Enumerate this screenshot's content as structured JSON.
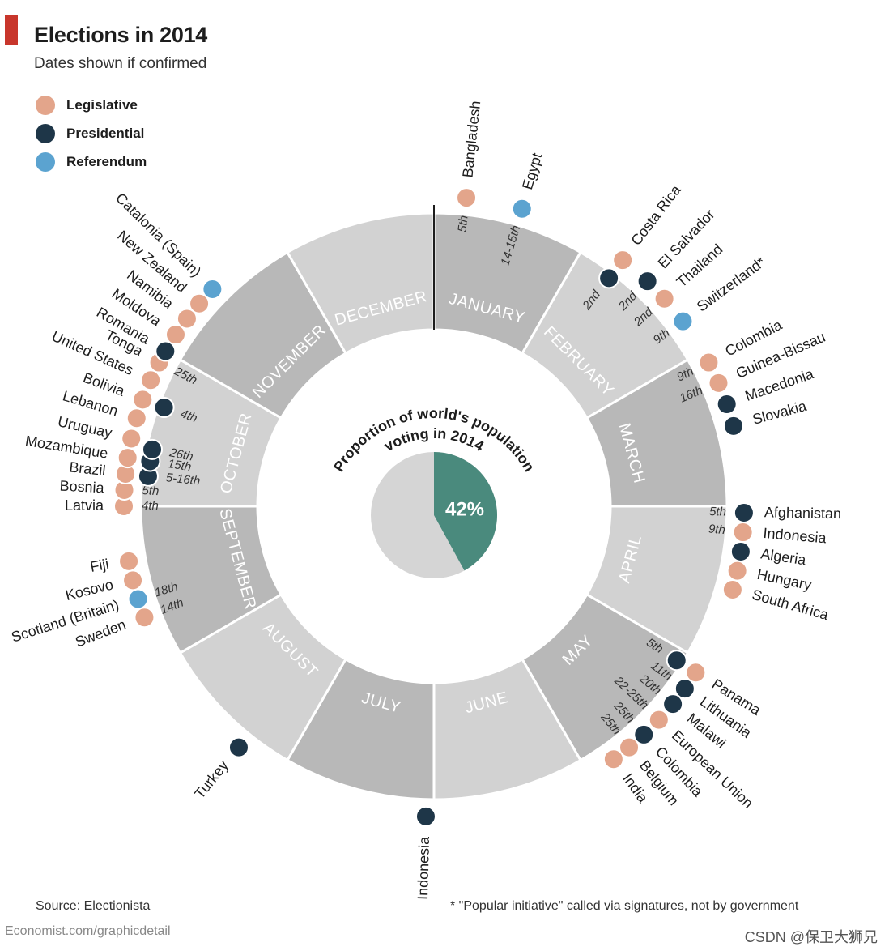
{
  "header": {
    "title": "Elections in 2014",
    "subtitle": "Dates shown if confirmed"
  },
  "legend": [
    {
      "label": "Legislative",
      "color": "#e3a58b",
      "key": "legislative"
    },
    {
      "label": "Presidential",
      "color": "#1e3648",
      "key": "presidential"
    },
    {
      "label": "Referendum",
      "color": "#5ba3d0",
      "key": "referendum"
    }
  ],
  "footer": {
    "source": "Source: Electionista",
    "credit": "Economist.com/graphicdetail",
    "footnote": "* \"Popular initiative\" called via signatures, not by government",
    "watermark": "CSDN @保卫大狮兄"
  },
  "colors": {
    "light_segment": "#d2d2d2",
    "dark_segment": "#b8b8b8",
    "pie_rest": "#d5d5d5",
    "pie_share": "#4a8a7d"
  },
  "chart_data": {
    "type": "radial-timeline",
    "months": [
      "JANUARY",
      "FEBRUARY",
      "MARCH",
      "APRIL",
      "MAY",
      "JUNE",
      "JULY",
      "AUGUST",
      "SEPTEMBER",
      "OCTOBER",
      "NOVEMBER",
      "DECEMBER"
    ],
    "center": {
      "title_line1": "Proportion of world's population",
      "title_line2": "voting in 2014",
      "share": 0.42,
      "share_label": "42%"
    },
    "elections": [
      {
        "month": 0,
        "pos": 0.2,
        "country": "Bangladesh",
        "type": "legislative",
        "date": "5th"
      },
      {
        "month": 0,
        "pos": 0.55,
        "country": "Egypt",
        "type": "referendum",
        "date": "14-15th"
      },
      {
        "month": 1,
        "pos": 0.25,
        "country": "Costa Rica",
        "type": "legislative",
        "date": ""
      },
      {
        "month": 1,
        "pos": 0.25,
        "country": "",
        "type": "presidential",
        "date": "2nd",
        "ring": 1
      },
      {
        "month": 1,
        "pos": 0.45,
        "country": "El Salvador",
        "type": "presidential",
        "date": "2nd"
      },
      {
        "month": 1,
        "pos": 0.6,
        "country": "Thailand",
        "type": "legislative",
        "date": "2nd"
      },
      {
        "month": 1,
        "pos": 0.78,
        "country": "Switzerland*",
        "type": "referendum",
        "date": "9th"
      },
      {
        "month": 2,
        "pos": 0.08,
        "country": "Colombia",
        "type": "legislative",
        "date": "9th"
      },
      {
        "month": 2,
        "pos": 0.22,
        "country": "Guinea-Bissau",
        "type": "legislative",
        "date": "16th"
      },
      {
        "month": 2,
        "pos": 0.36,
        "country": "Macedonia",
        "type": "presidential",
        "date": ""
      },
      {
        "month": 2,
        "pos": 0.5,
        "country": "Slovakia",
        "type": "presidential",
        "date": ""
      },
      {
        "month": 3,
        "pos": 0.04,
        "country": "Afghanistan",
        "type": "presidential",
        "date": "5th"
      },
      {
        "month": 3,
        "pos": 0.16,
        "country": "Indonesia",
        "type": "legislative",
        "date": "9th"
      },
      {
        "month": 3,
        "pos": 0.28,
        "country": "Algeria",
        "type": "presidential",
        "date": ""
      },
      {
        "month": 3,
        "pos": 0.4,
        "country": "Hungary",
        "type": "legislative",
        "date": ""
      },
      {
        "month": 3,
        "pos": 0.52,
        "country": "South Africa",
        "type": "legislative",
        "date": ""
      },
      {
        "month": 4,
        "pos": 0.08,
        "country": "Panama",
        "type": "legislative",
        "date": ""
      },
      {
        "month": 4,
        "pos": 0.08,
        "country": "",
        "type": "presidential",
        "date": "5th",
        "ring": 1
      },
      {
        "month": 4,
        "pos": 0.2,
        "country": "Lithuania",
        "type": "presidential",
        "date": "11th"
      },
      {
        "month": 4,
        "pos": 0.32,
        "country": "Malawi",
        "type": "presidential",
        "date": "20th"
      },
      {
        "month": 4,
        "pos": 0.45,
        "country": "European Union",
        "type": "legislative",
        "date": "22-25th"
      },
      {
        "month": 4,
        "pos": 0.58,
        "country": "Colombia",
        "type": "presidential",
        "date": "25th"
      },
      {
        "month": 4,
        "pos": 0.7,
        "country": "Belgium",
        "type": "legislative",
        "date": "25th"
      },
      {
        "month": 4,
        "pos": 0.82,
        "country": "India",
        "type": "legislative",
        "date": ""
      },
      {
        "month": 6,
        "pos": 0.05,
        "country": "Indonesia",
        "type": "presidential",
        "date": ""
      },
      {
        "month": 7,
        "pos": 0.3,
        "country": "Turkey",
        "type": "presidential",
        "date": ""
      },
      {
        "month": 8,
        "pos": 0.3,
        "country": "Sweden",
        "type": "legislative",
        "date": "14th"
      },
      {
        "month": 8,
        "pos": 0.42,
        "country": "Scotland (Britain)",
        "type": "referendum",
        "date": "18th"
      },
      {
        "month": 8,
        "pos": 0.54,
        "country": "Kosovo",
        "type": "legislative",
        "date": ""
      },
      {
        "month": 8,
        "pos": 0.66,
        "country": "Fiji",
        "type": "legislative",
        "date": ""
      },
      {
        "month": 9,
        "pos": 0.0,
        "country": "Latvia",
        "type": "legislative",
        "date": "4th"
      },
      {
        "month": 9,
        "pos": 0.1,
        "country": "Bosnia",
        "type": "legislative",
        "date": "5th"
      },
      {
        "month": 9,
        "pos": 0.2,
        "country": "Brazil",
        "type": "legislative",
        "date": ""
      },
      {
        "month": 9,
        "pos": 0.2,
        "country": "",
        "type": "presidential",
        "date": "5-16th",
        "ring": 1
      },
      {
        "month": 9,
        "pos": 0.3,
        "country": "Mozambique",
        "type": "legislative",
        "date": ""
      },
      {
        "month": 9,
        "pos": 0.3,
        "country": "",
        "type": "presidential",
        "date": "15th",
        "ring": 1
      },
      {
        "month": 9,
        "pos": 0.38,
        "country": "",
        "type": "presidential",
        "date": "26th",
        "ring": 1
      },
      {
        "month": 9,
        "pos": 0.42,
        "country": "Uruguay",
        "type": "legislative",
        "date": ""
      },
      {
        "month": 9,
        "pos": 0.55,
        "country": "Lebanon",
        "type": "legislative",
        "date": ""
      },
      {
        "month": 9,
        "pos": 0.67,
        "country": "Bolivia",
        "type": "legislative",
        "date": ""
      },
      {
        "month": 9,
        "pos": 0.67,
        "country": "",
        "type": "presidential",
        "date": "4th",
        "ring": 1
      },
      {
        "month": 9,
        "pos": 0.8,
        "country": "United States",
        "type": "legislative",
        "date": ""
      },
      {
        "month": 9,
        "pos": 0.92,
        "country": "Tonga",
        "type": "legislative",
        "date": "25th"
      },
      {
        "month": 10,
        "pos": 0.0,
        "country": "Romania",
        "type": "presidential",
        "date": ""
      },
      {
        "month": 10,
        "pos": 0.12,
        "country": "Moldova",
        "type": "legislative",
        "date": ""
      },
      {
        "month": 10,
        "pos": 0.24,
        "country": "Namibia",
        "type": "legislative",
        "date": ""
      },
      {
        "month": 10,
        "pos": 0.36,
        "country": "New Zealand",
        "type": "legislative",
        "date": ""
      },
      {
        "month": 10,
        "pos": 0.48,
        "country": "Catalonia (Spain)",
        "type": "referendum",
        "date": ""
      }
    ]
  }
}
